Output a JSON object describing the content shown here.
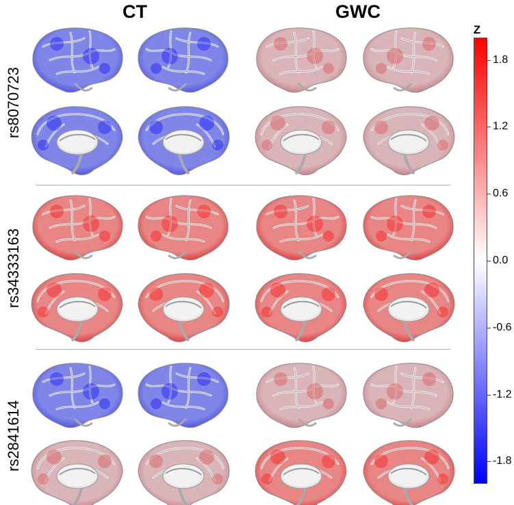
{
  "columns": [
    {
      "label": "CT"
    },
    {
      "label": "GWC"
    }
  ],
  "rows": [
    {
      "label": "rs8070723",
      "ct": {
        "lateral": "blue",
        "medial": "blue"
      },
      "gwc": {
        "lateral": "mixed",
        "medial": "mixed"
      }
    },
    {
      "label": "rs34333163",
      "ct": {
        "lateral": "red",
        "medial": "red"
      },
      "gwc": {
        "lateral": "red",
        "medial": "red"
      }
    },
    {
      "label": "rs2841614",
      "ct": {
        "lateral": "blue",
        "medial": "mixed"
      },
      "gwc": {
        "lateral": "mixed",
        "medial": "red"
      }
    }
  ],
  "colorbar": {
    "title": "Z",
    "min": -2.0,
    "max": 2.0,
    "ticks": [
      "1.8",
      "1.2",
      "0.6",
      "0.0",
      "-0.6",
      "-1.2",
      "-1.8"
    ],
    "colors": {
      "high": "#ff0000",
      "mid": "#ffffff",
      "low": "#0000ff"
    }
  }
}
